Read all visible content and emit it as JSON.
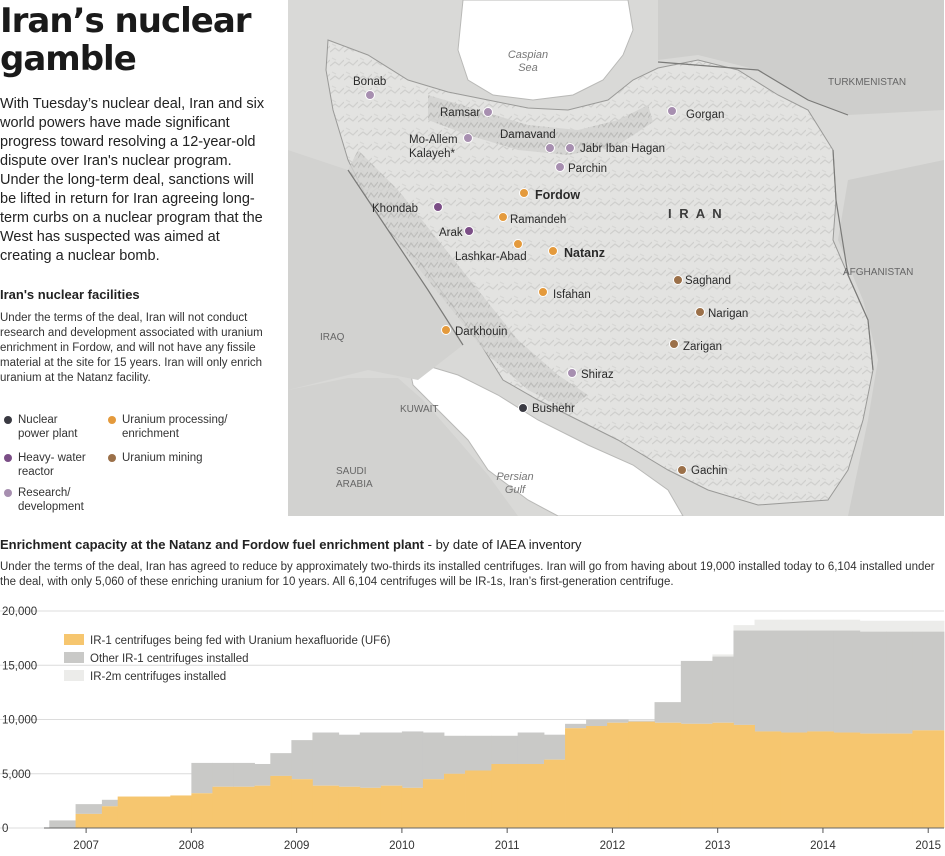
{
  "title": "Iran’s nuclear gamble",
  "intro": "With Tuesday’s nuclear deal, Iran and six world powers have made significant progress toward resolving a 12-year-old dispute over Iran's nuclear program. Under the long-term deal, sanctions will be lifted in return for Iran agreeing long-term curbs on a nuclear program that the West has suspected was aimed at creating a nuclear bomb.",
  "facilities": {
    "heading": "Iran's nuclear facilities",
    "text": "Under the terms of the deal, Iran will not conduct research and development associated with uranium enrichment in Fordow, and will not have any fissile material at the site for 15 years. Iran will only enrich uranium at the Natanz facility.",
    "legend": [
      {
        "label": "Nuclear\npower plant",
        "color": "#3a3a42"
      },
      {
        "label": "Heavy- water\nreactor",
        "color": "#7b4e86"
      },
      {
        "label": "Research/\ndevelopment",
        "color": "#a78fb0"
      },
      {
        "label": "Uranium processing/\nenrichment",
        "color": "#e49a3c"
      },
      {
        "label": "Uranium mining",
        "color": "#9b7049"
      }
    ]
  },
  "map": {
    "country": "I R A N",
    "water": [
      {
        "id": "caspian",
        "label": "Caspian\nSea"
      },
      {
        "id": "persian",
        "label": "Persian\nGulf"
      }
    ],
    "neighbors": [
      {
        "id": "turkmenistan",
        "label": "TURKMENISTAN"
      },
      {
        "id": "afghanistan",
        "label": "AFGHANISTAN"
      },
      {
        "id": "iraq",
        "label": "IRAQ"
      },
      {
        "id": "kuwait",
        "label": "KUWAIT"
      },
      {
        "id": "saudi",
        "label": "SAUDI\nARABIA"
      }
    ],
    "sites": [
      {
        "name": "Bonab",
        "type": "research"
      },
      {
        "name": "Ramsar",
        "type": "research"
      },
      {
        "name": "Gorgan",
        "type": "research"
      },
      {
        "name": "Damavand",
        "type": "research"
      },
      {
        "name": "Mo-Allem\nKalayeh*",
        "type": "research"
      },
      {
        "name": "Jabr Iban Hagan",
        "type": "research"
      },
      {
        "name": "Parchin",
        "type": "research"
      },
      {
        "name": "Fordow",
        "type": "enrichment",
        "bold": true
      },
      {
        "name": "Khondab",
        "type": "heavywater"
      },
      {
        "name": "Ramandeh",
        "type": "enrichment"
      },
      {
        "name": "Arak",
        "type": "heavywater"
      },
      {
        "name": "Lashkar-Abad",
        "type": "enrichment"
      },
      {
        "name": "Natanz",
        "type": "enrichment",
        "bold": true
      },
      {
        "name": "Saghand",
        "type": "mining"
      },
      {
        "name": "Isfahan",
        "type": "enrichment"
      },
      {
        "name": "Narigan",
        "type": "mining"
      },
      {
        "name": "Darkhouin",
        "type": "enrichment"
      },
      {
        "name": "Zarigan",
        "type": "mining"
      },
      {
        "name": "Shiraz",
        "type": "research"
      },
      {
        "name": "Bushehr",
        "type": "power"
      },
      {
        "name": "Gachin",
        "type": "mining"
      }
    ]
  },
  "chart_header": {
    "title": "Enrichment capacity at the Natanz and Fordow fuel enrichment plant",
    "suffix": " - by date of IAEA inventory",
    "subtitle": "Under the terms of the deal, Iran has agreed to reduce by approximately two-thirds its installed centrifuges. Iran will go from having about 19,000 installed today to 6,104 installed under the deal, with only 5,060 of these enriching uranium for 10 years. All 6,104 centrifuges will be IR-1s, Iran’s first-generation centrifuge."
  },
  "chart_data": {
    "type": "area",
    "stacked": true,
    "ylim": [
      0,
      20000
    ],
    "yticks": [
      0,
      5000,
      10000,
      15000,
      20000
    ],
    "ytick_labels": [
      "0",
      "5,000",
      "10,000",
      "15,000",
      "20,000"
    ],
    "xticks": [
      2007,
      2008,
      2009,
      2010,
      2011,
      2012,
      2013,
      2014,
      2015
    ],
    "xlim": [
      2006.6,
      2015.15
    ],
    "legend_position": "top-left",
    "x": [
      2006.65,
      2006.9,
      2007.15,
      2007.3,
      2007.55,
      2007.8,
      2008.0,
      2008.2,
      2008.4,
      2008.6,
      2008.75,
      2008.95,
      2009.15,
      2009.4,
      2009.6,
      2009.8,
      2010.0,
      2010.2,
      2010.4,
      2010.6,
      2010.85,
      2011.1,
      2011.35,
      2011.55,
      2011.75,
      2011.95,
      2012.15,
      2012.4,
      2012.65,
      2012.95,
      2013.15,
      2013.35,
      2013.6,
      2013.85,
      2014.1,
      2014.35,
      2014.6,
      2014.85
    ],
    "x_end": 2015.15,
    "series": [
      {
        "name": "IR-1 centrifuges being fed with Uranium hexafluoride (UF6)",
        "color": "#f6c66f",
        "values": [
          0,
          1300,
          2000,
          2900,
          2900,
          3000,
          3200,
          3800,
          3800,
          3900,
          4800,
          4500,
          3900,
          3800,
          3700,
          3900,
          3700,
          4500,
          5000,
          5300,
          5900,
          5900,
          6300,
          9200,
          9400,
          9700,
          9800,
          9700,
          9600,
          9700,
          9500,
          8900,
          8800,
          8900,
          8800,
          8700,
          8700,
          9000
        ]
      },
      {
        "name": "Other IR-1 centrifuges installed",
        "color": "#c9c9c7",
        "values": [
          700,
          900,
          600,
          0,
          0,
          0,
          2800,
          2200,
          2200,
          2000,
          2100,
          3600,
          4900,
          4800,
          5100,
          4900,
          5200,
          4300,
          3500,
          3200,
          2600,
          2900,
          2300,
          400,
          600,
          300,
          100,
          1900,
          5800,
          6100,
          8700,
          9300,
          9400,
          9300,
          9400,
          9400,
          9400,
          9100
        ]
      },
      {
        "name": "IR-2m centrifuges installed",
        "color": "#ececea",
        "values": [
          0,
          0,
          0,
          0,
          0,
          0,
          0,
          0,
          0,
          0,
          0,
          0,
          0,
          0,
          0,
          0,
          0,
          0,
          0,
          0,
          0,
          0,
          0,
          0,
          0,
          0,
          0,
          0,
          0,
          200,
          500,
          1000,
          1000,
          1000,
          1000,
          1000,
          1000,
          1000
        ]
      }
    ]
  }
}
